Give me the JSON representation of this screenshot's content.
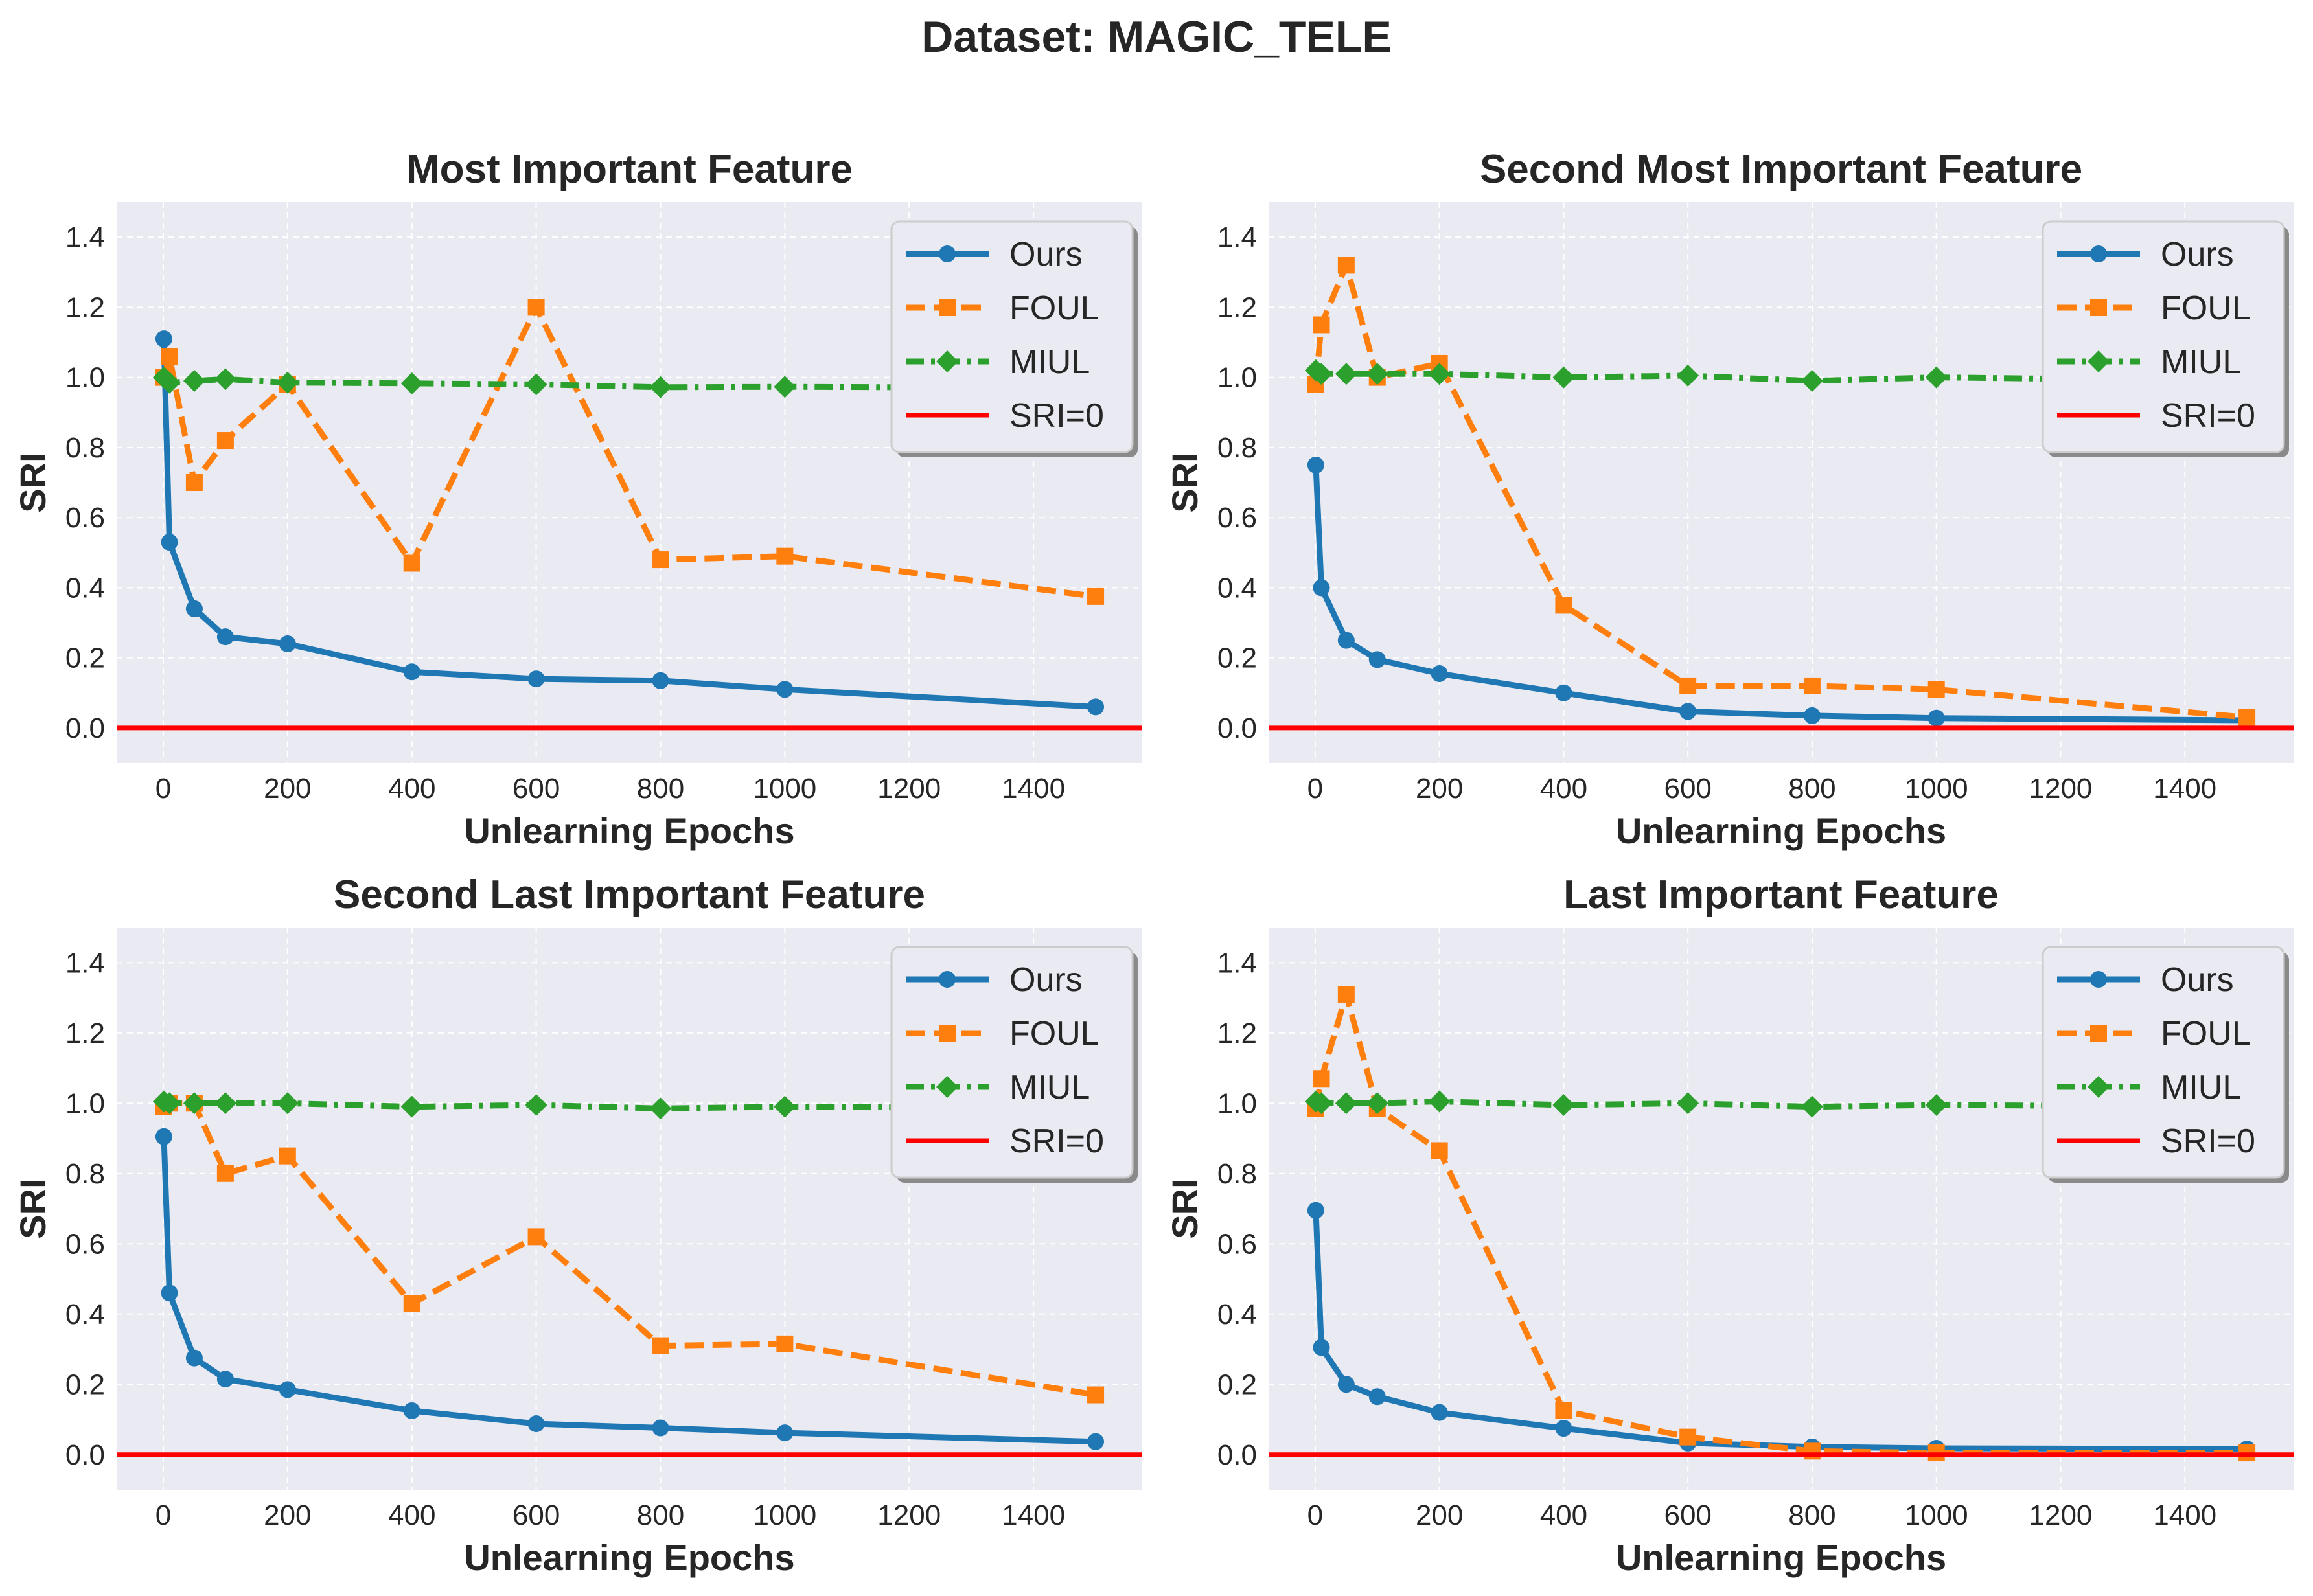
{
  "figure": {
    "suptitle": "Dataset: MAGIC_TELE"
  },
  "colors": {
    "ours": "#1f77b4",
    "foul": "#ff7f0e",
    "miul": "#2ca02c",
    "sri0": "#ff0000",
    "axes_bg": "#eaeaf2",
    "grid": "#ffffff"
  },
  "chart_data": [
    {
      "type": "line",
      "title": "Most Important Feature",
      "xlabel": "Unlearning Epochs",
      "ylabel": "SRI",
      "xlim": [
        -75,
        1575
      ],
      "ylim": [
        -0.1,
        1.5
      ],
      "xticks": [
        0,
        200,
        400,
        600,
        800,
        1000,
        1200,
        1400
      ],
      "yticks": [
        0.0,
        0.2,
        0.4,
        0.6,
        0.8,
        1.0,
        1.2,
        1.4
      ],
      "ytick_labels": [
        "0.0",
        "0.2",
        "0.4",
        "0.6",
        "0.8",
        "1.0",
        "1.2",
        "1.4"
      ],
      "grid": true,
      "legend": "top-right",
      "x": [
        1,
        10,
        50,
        100,
        200,
        400,
        600,
        800,
        1000,
        1500
      ],
      "series": [
        {
          "name": "Ours",
          "marker": "circle",
          "style": "solid",
          "values": [
            1.11,
            0.53,
            0.34,
            0.26,
            0.24,
            0.16,
            0.14,
            0.135,
            0.11,
            0.06
          ]
        },
        {
          "name": "FOUL",
          "marker": "square",
          "style": "dashed",
          "values": [
            1.0,
            1.06,
            0.7,
            0.82,
            0.98,
            0.47,
            1.2,
            0.48,
            0.49,
            0.375
          ]
        },
        {
          "name": "MIUL",
          "marker": "diamond",
          "style": "dashdot",
          "values": [
            1.0,
            0.985,
            0.99,
            0.995,
            0.985,
            0.983,
            0.98,
            0.972,
            0.973,
            0.97
          ]
        }
      ],
      "hline": {
        "name": "SRI=0",
        "y": 0
      }
    },
    {
      "type": "line",
      "title": "Second Most Important Feature",
      "xlabel": "Unlearning Epochs",
      "ylabel": "SRI",
      "xlim": [
        -75,
        1575
      ],
      "ylim": [
        -0.1,
        1.5
      ],
      "xticks": [
        0,
        200,
        400,
        600,
        800,
        1000,
        1200,
        1400
      ],
      "yticks": [
        0.0,
        0.2,
        0.4,
        0.6,
        0.8,
        1.0,
        1.2,
        1.4
      ],
      "ytick_labels": [
        "0.0",
        "0.2",
        "0.4",
        "0.6",
        "0.8",
        "1.0",
        "1.2",
        "1.4"
      ],
      "grid": true,
      "legend": "top-right",
      "x": [
        1,
        10,
        50,
        100,
        200,
        400,
        600,
        800,
        1000,
        1500
      ],
      "series": [
        {
          "name": "Ours",
          "marker": "circle",
          "style": "solid",
          "values": [
            0.75,
            0.4,
            0.25,
            0.195,
            0.155,
            0.1,
            0.047,
            0.035,
            0.028,
            0.022
          ]
        },
        {
          "name": "FOUL",
          "marker": "square",
          "style": "dashed",
          "values": [
            0.98,
            1.15,
            1.32,
            1.0,
            1.04,
            0.35,
            0.12,
            0.12,
            0.11,
            0.03
          ]
        },
        {
          "name": "MIUL",
          "marker": "diamond",
          "style": "dashdot",
          "values": [
            1.02,
            1.01,
            1.01,
            1.01,
            1.01,
            1.0,
            1.005,
            0.99,
            1.0,
            0.99
          ]
        }
      ],
      "hline": {
        "name": "SRI=0",
        "y": 0
      }
    },
    {
      "type": "line",
      "title": "Second Last Important Feature",
      "xlabel": "Unlearning Epochs",
      "ylabel": "SRI",
      "xlim": [
        -75,
        1575
      ],
      "ylim": [
        -0.1,
        1.5
      ],
      "xticks": [
        0,
        200,
        400,
        600,
        800,
        1000,
        1200,
        1400
      ],
      "yticks": [
        0.0,
        0.2,
        0.4,
        0.6,
        0.8,
        1.0,
        1.2,
        1.4
      ],
      "ytick_labels": [
        "0.0",
        "0.2",
        "0.4",
        "0.6",
        "0.8",
        "1.0",
        "1.2",
        "1.4"
      ],
      "grid": true,
      "legend": "top-right",
      "x": [
        1,
        10,
        50,
        100,
        200,
        400,
        600,
        800,
        1000,
        1500
      ],
      "series": [
        {
          "name": "Ours",
          "marker": "circle",
          "style": "solid",
          "values": [
            0.905,
            0.46,
            0.275,
            0.215,
            0.185,
            0.125,
            0.088,
            0.076,
            0.062,
            0.037
          ]
        },
        {
          "name": "FOUL",
          "marker": "square",
          "style": "dashed",
          "values": [
            0.99,
            1.0,
            1.0,
            0.8,
            0.85,
            0.43,
            0.62,
            0.31,
            0.315,
            0.17
          ]
        },
        {
          "name": "MIUL",
          "marker": "diamond",
          "style": "dashdot",
          "values": [
            1.005,
            1.0,
            1.0,
            1.0,
            1.0,
            0.99,
            0.995,
            0.985,
            0.99,
            0.985
          ]
        }
      ],
      "hline": {
        "name": "SRI=0",
        "y": 0
      }
    },
    {
      "type": "line",
      "title": "Last Important Feature",
      "xlabel": "Unlearning Epochs",
      "ylabel": "SRI",
      "xlim": [
        -75,
        1575
      ],
      "ylim": [
        -0.1,
        1.5
      ],
      "xticks": [
        0,
        200,
        400,
        600,
        800,
        1000,
        1200,
        1400
      ],
      "yticks": [
        0.0,
        0.2,
        0.4,
        0.6,
        0.8,
        1.0,
        1.2,
        1.4
      ],
      "ytick_labels": [
        "0.0",
        "0.2",
        "0.4",
        "0.6",
        "0.8",
        "1.0",
        "1.2",
        "1.4"
      ],
      "grid": true,
      "legend": "top-right",
      "x": [
        1,
        10,
        50,
        100,
        200,
        400,
        600,
        800,
        1000,
        1500
      ],
      "series": [
        {
          "name": "Ours",
          "marker": "circle",
          "style": "solid",
          "values": [
            0.695,
            0.305,
            0.2,
            0.165,
            0.12,
            0.075,
            0.033,
            0.022,
            0.018,
            0.016
          ]
        },
        {
          "name": "FOUL",
          "marker": "square",
          "style": "dashed",
          "values": [
            0.985,
            1.07,
            1.31,
            0.985,
            0.865,
            0.125,
            0.05,
            0.01,
            0.005,
            0.005
          ]
        },
        {
          "name": "MIUL",
          "marker": "diamond",
          "style": "dashdot",
          "values": [
            1.005,
            1.0,
            1.0,
            1.0,
            1.005,
            0.995,
            1.0,
            0.99,
            0.995,
            0.99
          ]
        }
      ],
      "hline": {
        "name": "SRI=0",
        "y": 0
      }
    }
  ]
}
